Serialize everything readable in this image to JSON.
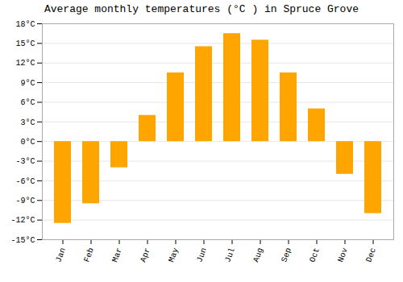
{
  "chart_data": {
    "type": "bar",
    "title": "Average monthly temperatures (°C ) in Spruce Grove",
    "categories": [
      "Jan",
      "Feb",
      "Mar",
      "Apr",
      "May",
      "Jun",
      "Jul",
      "Aug",
      "Sep",
      "Oct",
      "Nov",
      "Dec"
    ],
    "values": [
      -12.5,
      -9.5,
      -4.0,
      4.0,
      10.5,
      14.5,
      16.5,
      15.5,
      10.5,
      5.0,
      -5.0,
      -11.0
    ],
    "color": "#FFA500",
    "ylim": [
      -15,
      18
    ],
    "yticks": [
      {
        "value": -15,
        "label": "-15°C"
      },
      {
        "value": -12,
        "label": "-12°C"
      },
      {
        "value": -9,
        "label": "-9°C"
      },
      {
        "value": -6,
        "label": "-6°C"
      },
      {
        "value": -3,
        "label": "-3°C"
      },
      {
        "value": 0,
        "label": "0°C"
      },
      {
        "value": 3,
        "label": "3°C"
      },
      {
        "value": 6,
        "label": "6°C"
      },
      {
        "value": 9,
        "label": "9°C"
      },
      {
        "value": 12,
        "label": "12°C"
      },
      {
        "value": 15,
        "label": "15°C"
      },
      {
        "value": 18,
        "label": "18°C"
      }
    ],
    "grid": true
  }
}
